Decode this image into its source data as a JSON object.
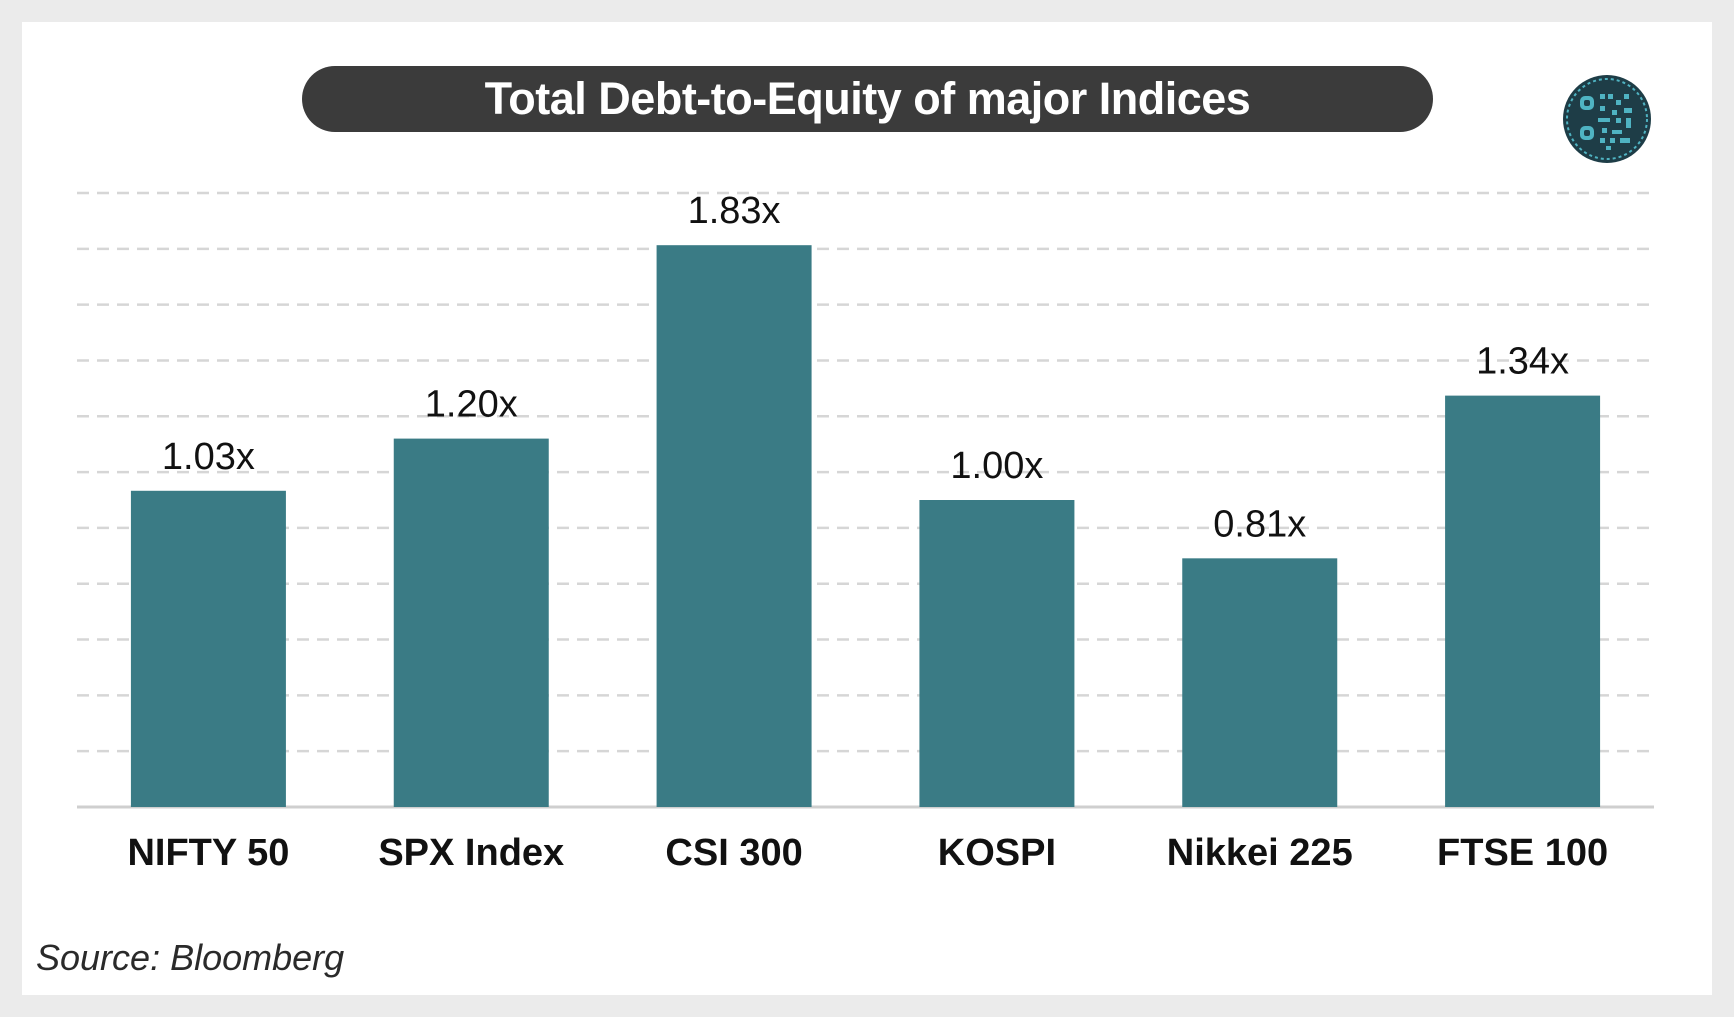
{
  "chart_data": {
    "type": "bar",
    "title": "Total Debt-to-Equity of major Indices",
    "categories": [
      "NIFTY 50",
      "SPX Index",
      "CSI 300",
      "KOSPI",
      "Nikkei 225",
      "FTSE 100"
    ],
    "values": [
      1.03,
      1.2,
      1.83,
      1.0,
      0.81,
      1.34
    ],
    "value_labels": [
      "1.03x",
      "1.20x",
      "1.83x",
      "1.00x",
      "0.81x",
      "1.34x"
    ],
    "xlabel": "",
    "ylabel": "",
    "ylim": [
      0,
      2.0
    ],
    "grid": true,
    "grid_style": "dashed",
    "bar_color": "#3a7b85",
    "source": "Source: Bloomberg"
  },
  "colors": {
    "title_background": "#3b3b3b",
    "logo_background": "#1e3d47",
    "logo_accent": "#4fb3c2"
  },
  "logo": {
    "icon": "circuit-logo-icon"
  }
}
